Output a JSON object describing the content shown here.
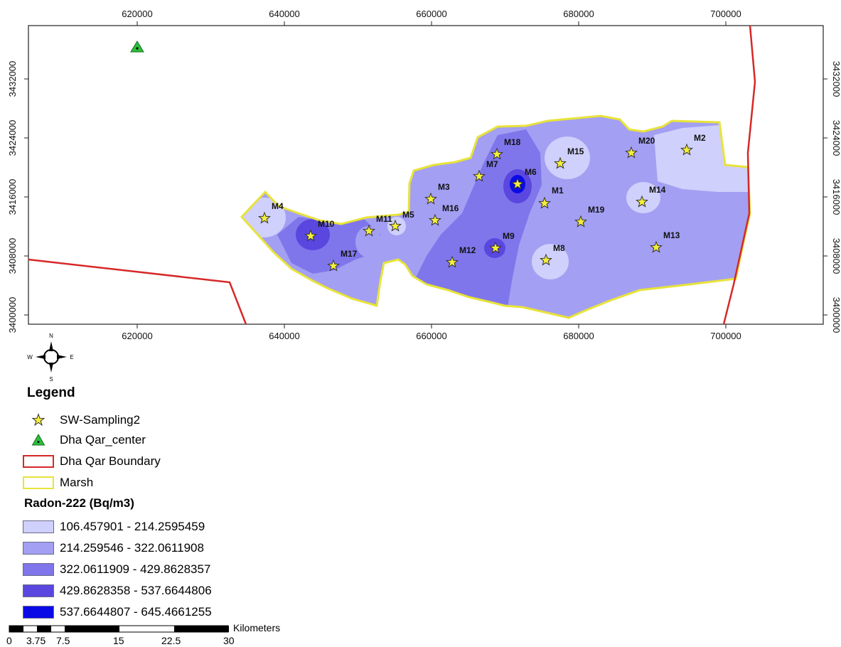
{
  "map": {
    "x_ticks": [
      "620000",
      "640000",
      "660000",
      "680000",
      "700000"
    ],
    "y_ticks": [
      "3432000",
      "3424000",
      "3416000",
      "3408000",
      "3400000"
    ],
    "sites": [
      {
        "id": "M1"
      },
      {
        "id": "M2"
      },
      {
        "id": "M3"
      },
      {
        "id": "M4"
      },
      {
        "id": "M5"
      },
      {
        "id": "M6"
      },
      {
        "id": "M7"
      },
      {
        "id": "M8"
      },
      {
        "id": "M9"
      },
      {
        "id": "M10"
      },
      {
        "id": "M11"
      },
      {
        "id": "M12"
      },
      {
        "id": "M13"
      },
      {
        "id": "M14"
      },
      {
        "id": "M15"
      },
      {
        "id": "M16"
      },
      {
        "id": "M17"
      },
      {
        "id": "M18"
      },
      {
        "id": "M19"
      },
      {
        "id": "M20"
      }
    ]
  },
  "north_arrow": {
    "n": "N",
    "s": "S",
    "e": "E",
    "w": "W"
  },
  "legend": {
    "title": "Legend",
    "sampling_label": "SW-Sampling2",
    "center_label": "Dha Qar_center",
    "boundary_label": "Dha Qar Boundary",
    "marsh_label": "Marsh",
    "radon_title": "Radon-222 (Bq/m3)",
    "classes": [
      {
        "label": "106.457901 - 214.2595459",
        "color": "#cfd0fb"
      },
      {
        "label": "214.259546 - 322.0611908",
        "color": "#a39ff3"
      },
      {
        "label": "322.0611909 - 429.8628357",
        "color": "#7f76eb"
      },
      {
        "label": "429.8628358 - 537.6644806",
        "color": "#5a47df"
      },
      {
        "label": "537.6644807 - 645.4661255",
        "color": "#0a0ae6"
      }
    ]
  },
  "scale_bar": {
    "unit": "Kilometers",
    "labels": [
      "0",
      "3.75",
      "7.5",
      "15",
      "22.5",
      "30"
    ]
  },
  "colors": {
    "boundary": "#d62828",
    "marsh_outline": "#e8e33a",
    "star_fill": "#f4ee3c",
    "center_fill": "#2bbf3a"
  }
}
